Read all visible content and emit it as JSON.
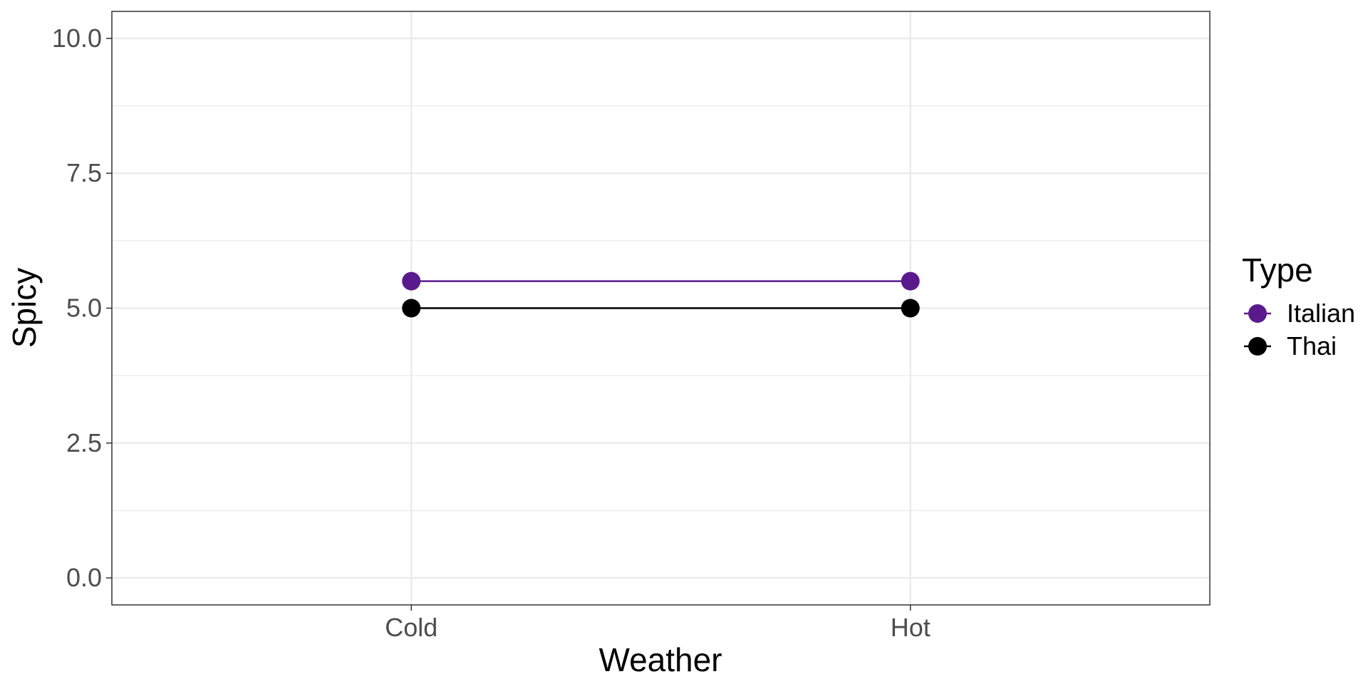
{
  "chart_data": {
    "type": "line",
    "xlabel": "Weather",
    "ylabel": "Spicy",
    "categories": [
      "Cold",
      "Hot"
    ],
    "ylim": [
      -0.5,
      10.5
    ],
    "yticks": [
      0.0,
      2.5,
      5.0,
      7.5,
      10.0
    ],
    "ytick_labels": [
      "0.0",
      "2.5",
      "5.0",
      "7.5",
      "10.0"
    ],
    "grid": true,
    "legend": {
      "title": "Type",
      "placement": "right"
    },
    "series": [
      {
        "name": "Italian",
        "values": [
          5.5,
          5.5
        ],
        "color": "#5a1a8c"
      },
      {
        "name": "Thai",
        "values": [
          5.0,
          5.0
        ],
        "color": "#000000"
      }
    ]
  }
}
